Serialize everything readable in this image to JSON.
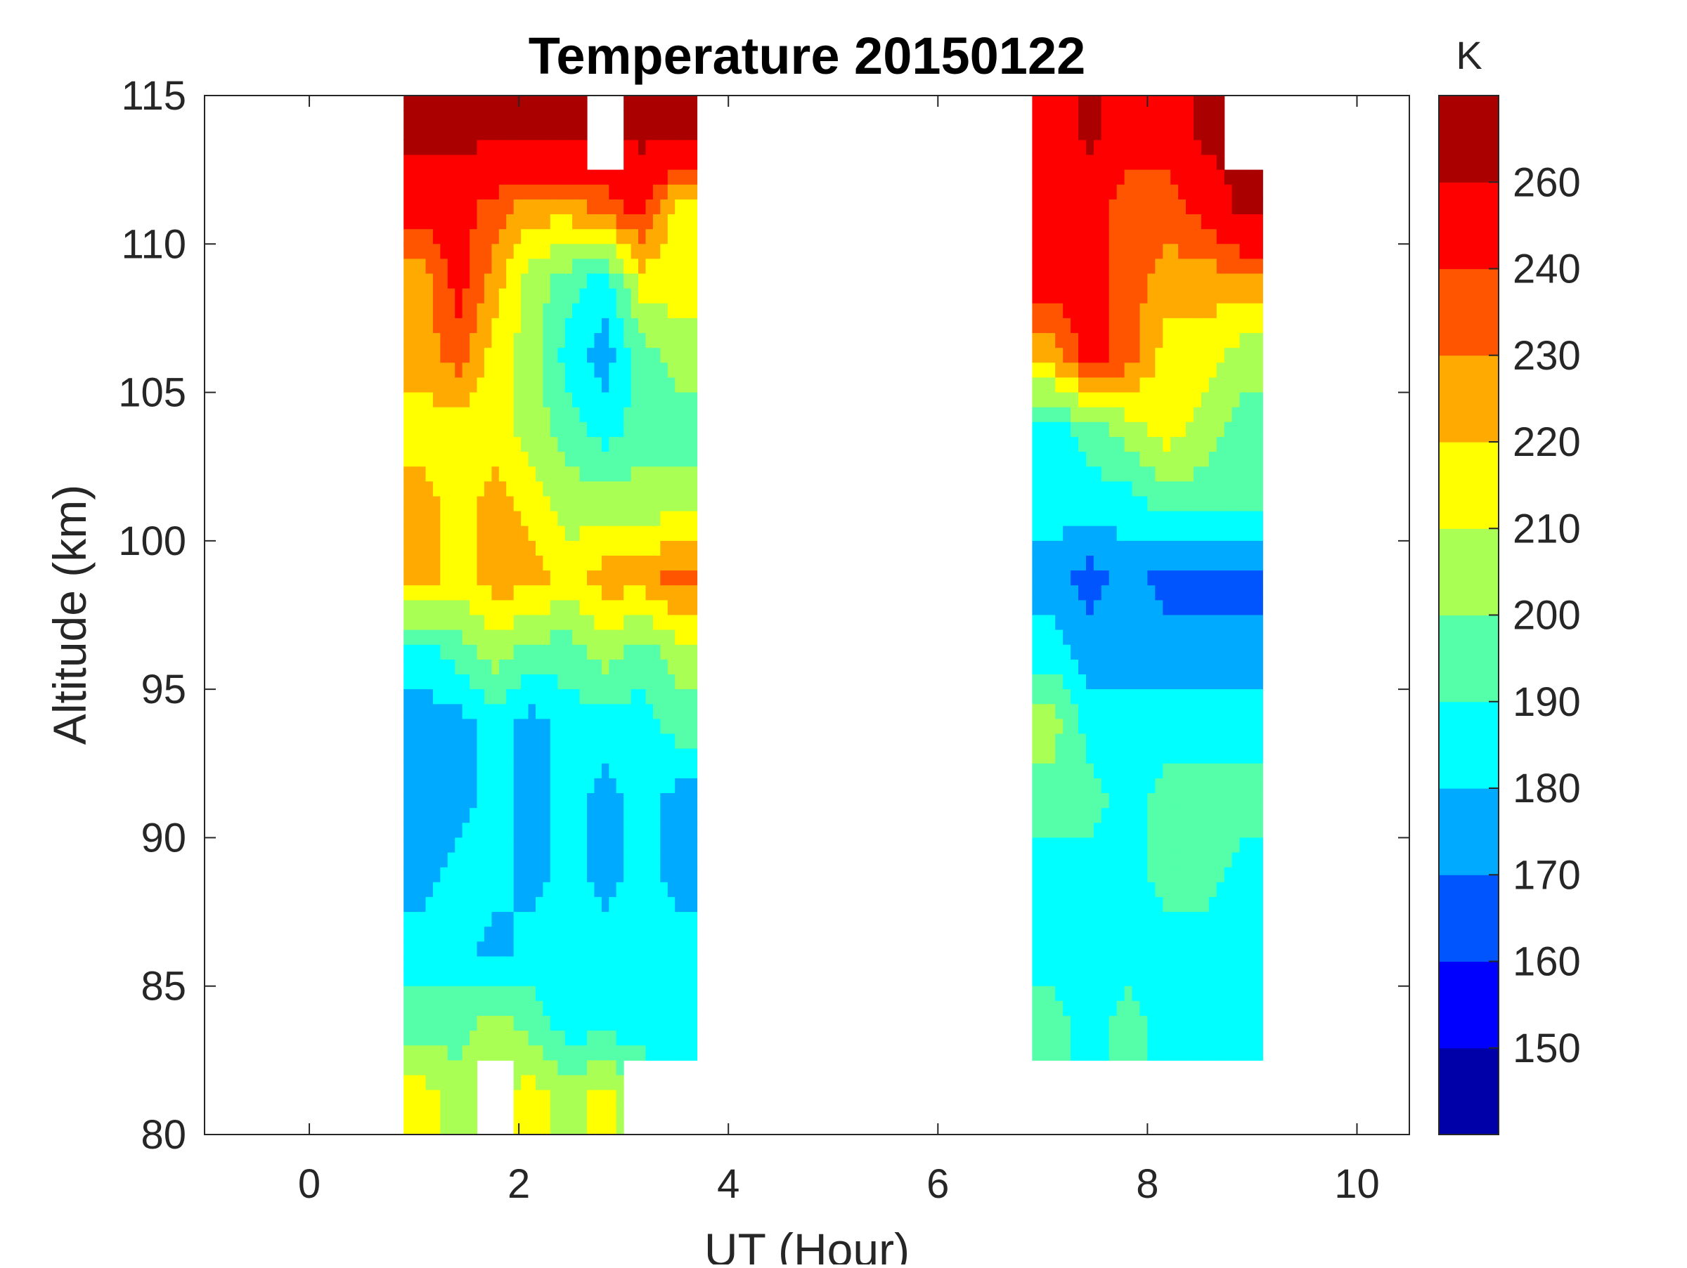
{
  "chart_data": {
    "type": "heatmap",
    "subtype": "filled-contour",
    "title": "Temperature 20150122",
    "xlabel": "UT (Hour)",
    "ylabel": "Altitude (km)",
    "xlim": [
      -1,
      10.5
    ],
    "ylim": [
      80,
      115
    ],
    "xticks": [
      0,
      2,
      4,
      6,
      8,
      10
    ],
    "yticks": [
      80,
      85,
      90,
      95,
      100,
      105,
      110,
      115
    ],
    "grid": false,
    "colorbar": {
      "unit": "K",
      "position": "right",
      "levels": [
        140,
        150,
        160,
        170,
        180,
        190,
        200,
        210,
        220,
        230,
        240,
        260,
        270
      ],
      "colors": [
        "#0000a8",
        "#0000ff",
        "#0055ff",
        "#00aaff",
        "#00ffff",
        "#55ffaa",
        "#aaff55",
        "#ffff00",
        "#ffaa00",
        "#ff5500",
        "#ff0000",
        "#aa0000"
      ],
      "tick_labels": [
        "150",
        "160",
        "170",
        "180",
        "190",
        "200",
        "210",
        "220",
        "230",
        "240",
        "260"
      ]
    },
    "altitude_rows": [
      113.75,
      111.25,
      108.75,
      106.25,
      103.75,
      101.25,
      98.75,
      96.25,
      93.75,
      91.25,
      88.75,
      86.25,
      83.75,
      81.25
    ],
    "blocks": [
      {
        "ut_start": 0.9,
        "ut_end": 3.7,
        "ut_cols": [
          1.075,
          1.425,
          1.775,
          2.125,
          2.475,
          2.825,
          3.175,
          3.525
        ],
        "temperature": [
          [
            265,
            265,
            265,
            265,
            265,
            null,
            265,
            265
          ],
          [
            245,
            245,
            235,
            225,
            225,
            235,
            245,
            215
          ],
          [
            225,
            245,
            225,
            205,
            195,
            185,
            215,
            215
          ],
          [
            225,
            235,
            215,
            205,
            185,
            175,
            195,
            205
          ],
          [
            215,
            215,
            215,
            205,
            195,
            185,
            195,
            195
          ],
          [
            225,
            215,
            225,
            215,
            205,
            205,
            205,
            205
          ],
          [
            225,
            215,
            225,
            225,
            215,
            225,
            225,
            235
          ],
          [
            185,
            195,
            205,
            195,
            195,
            205,
            195,
            205
          ],
          [
            175,
            175,
            185,
            175,
            185,
            185,
            185,
            195
          ],
          [
            175,
            175,
            185,
            175,
            185,
            175,
            185,
            175
          ],
          [
            175,
            185,
            185,
            175,
            185,
            175,
            185,
            175
          ],
          [
            185,
            185,
            175,
            185,
            185,
            185,
            185,
            185
          ],
          [
            195,
            195,
            205,
            195,
            185,
            185,
            185,
            185
          ],
          [
            215,
            205,
            null,
            215,
            205,
            215,
            null,
            null
          ]
        ]
      },
      {
        "ut_start": 6.9,
        "ut_end": 9.1,
        "ut_cols": [
          7.083,
          7.45,
          7.817,
          8.183,
          8.55,
          8.917
        ],
        "temperature": [
          [
            245,
            265,
            245,
            245,
            265,
            null
          ],
          [
            245,
            245,
            235,
            235,
            245,
            265
          ],
          [
            245,
            245,
            235,
            225,
            225,
            225
          ],
          [
            225,
            245,
            235,
            215,
            215,
            205
          ],
          [
            185,
            195,
            205,
            215,
            205,
            195
          ],
          [
            185,
            185,
            185,
            195,
            195,
            195
          ],
          [
            175,
            165,
            175,
            165,
            165,
            165
          ],
          [
            185,
            175,
            175,
            175,
            175,
            175
          ],
          [
            205,
            185,
            185,
            185,
            185,
            185
          ],
          [
            195,
            195,
            185,
            195,
            195,
            195
          ],
          [
            185,
            185,
            185,
            195,
            195,
            185
          ],
          [
            185,
            185,
            185,
            185,
            185,
            185
          ],
          [
            195,
            185,
            195,
            185,
            185,
            185
          ],
          [
            null,
            null,
            null,
            null,
            null,
            null
          ]
        ]
      }
    ]
  }
}
